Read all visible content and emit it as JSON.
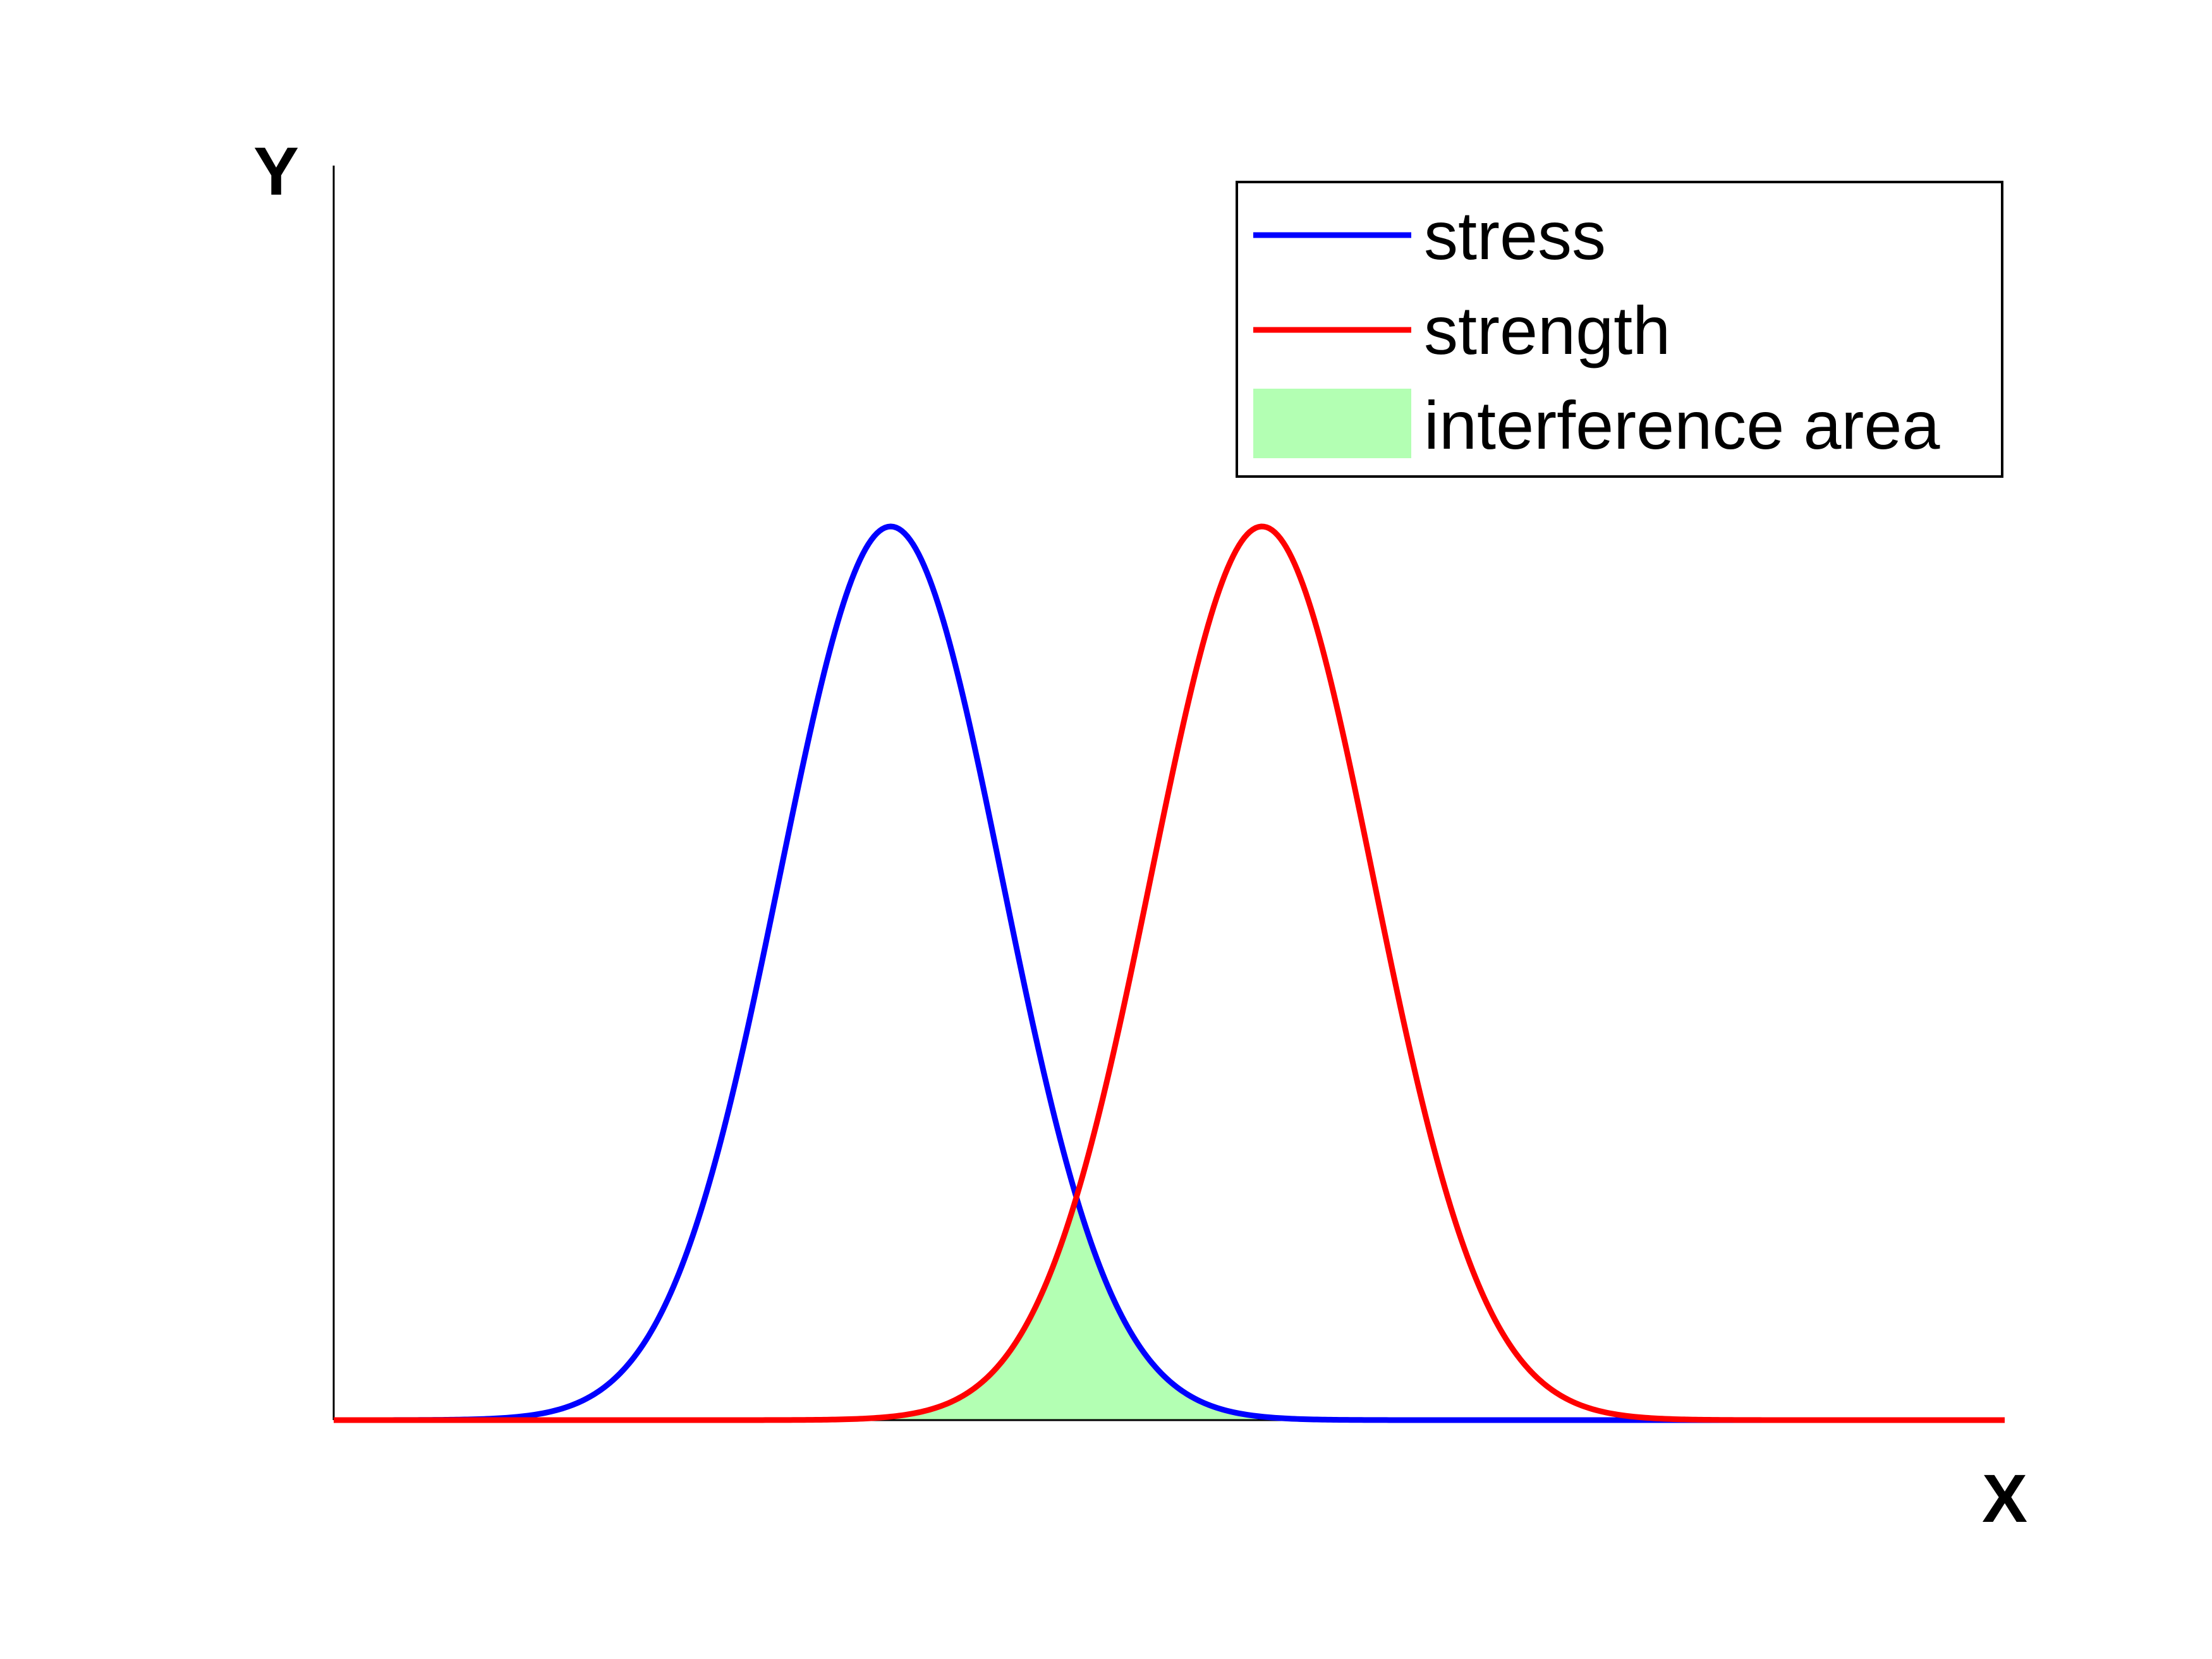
{
  "chart_data": {
    "type": "line",
    "title": "",
    "xlabel": "X",
    "ylabel": "Y",
    "xlim": [
      0,
      9
    ],
    "ylim": [
      0,
      1.0
    ],
    "grid": false,
    "legend": "top-right",
    "series": [
      {
        "name": "stress",
        "color": "#0000ff",
        "distribution": "normal",
        "mean": 3.0,
        "std": 0.6,
        "peak": 1.0
      },
      {
        "name": "strength",
        "color": "#ff0000",
        "distribution": "normal",
        "mean": 5.0,
        "std": 0.6,
        "peak": 1.0
      }
    ],
    "fill": {
      "name": "interference area",
      "color": "#b3ffb3"
    }
  }
}
